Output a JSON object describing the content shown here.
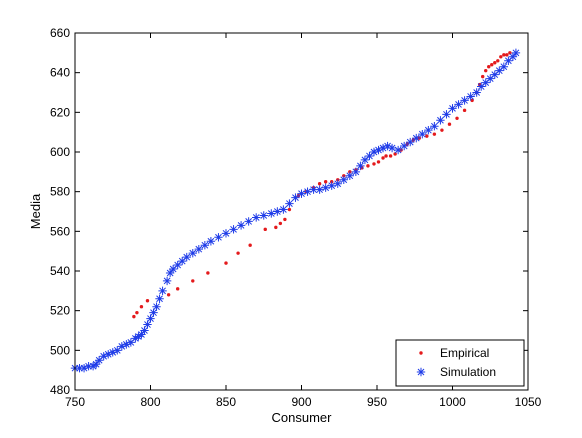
{
  "chart_data": {
    "type": "scatter",
    "title": "",
    "xlabel": "Consumer",
    "ylabel": "Media",
    "xlim": [
      750,
      1050
    ],
    "ylim": [
      480,
      660
    ],
    "xticks": [
      750,
      800,
      850,
      900,
      950,
      1000,
      1050
    ],
    "yticks": [
      480,
      500,
      520,
      540,
      560,
      580,
      600,
      620,
      640,
      660
    ],
    "grid": false,
    "legend_placement": "bottom-right",
    "series": [
      {
        "name": "Empirical",
        "marker": "dot",
        "color": "#e41a1c",
        "points": [
          [
            789,
            517
          ],
          [
            791,
            519
          ],
          [
            794,
            522
          ],
          [
            798,
            525
          ],
          [
            812,
            528
          ],
          [
            818,
            531
          ],
          [
            828,
            535
          ],
          [
            838,
            539
          ],
          [
            850,
            544
          ],
          [
            858,
            549
          ],
          [
            866,
            553
          ],
          [
            876,
            561
          ],
          [
            883,
            562
          ],
          [
            886,
            564
          ],
          [
            889,
            566
          ],
          [
            892,
            571
          ],
          [
            898,
            578
          ],
          [
            903,
            580
          ],
          [
            908,
            582
          ],
          [
            912,
            584
          ],
          [
            916,
            585
          ],
          [
            920,
            585
          ],
          [
            924,
            586
          ],
          [
            928,
            588
          ],
          [
            932,
            590
          ],
          [
            936,
            591
          ],
          [
            940,
            592
          ],
          [
            944,
            593
          ],
          [
            948,
            594
          ],
          [
            951,
            595
          ],
          [
            954,
            597
          ],
          [
            956,
            598
          ],
          [
            959,
            598
          ],
          [
            962,
            599
          ],
          [
            966,
            601
          ],
          [
            970,
            604
          ],
          [
            974,
            606
          ],
          [
            978,
            607
          ],
          [
            983,
            608
          ],
          [
            988,
            609
          ],
          [
            993,
            611
          ],
          [
            998,
            614
          ],
          [
            1003,
            617
          ],
          [
            1008,
            621
          ],
          [
            1013,
            626
          ],
          [
            1016,
            630
          ],
          [
            1018,
            634
          ],
          [
            1020,
            638
          ],
          [
            1022,
            641
          ],
          [
            1024,
            643
          ],
          [
            1026,
            644
          ],
          [
            1028,
            645
          ],
          [
            1030,
            646
          ],
          [
            1032,
            648
          ],
          [
            1034,
            649
          ],
          [
            1036,
            649
          ],
          [
            1038,
            650
          ]
        ]
      },
      {
        "name": "Simulation",
        "marker": "asterisk",
        "color": "#1f3ce8",
        "points": [
          [
            750,
            491
          ],
          [
            753,
            491
          ],
          [
            756,
            491
          ],
          [
            759,
            492
          ],
          [
            762,
            492
          ],
          [
            764,
            493
          ],
          [
            766,
            495
          ],
          [
            769,
            497
          ],
          [
            772,
            498
          ],
          [
            775,
            499
          ],
          [
            778,
            500
          ],
          [
            781,
            502
          ],
          [
            784,
            503
          ],
          [
            787,
            504
          ],
          [
            790,
            506
          ],
          [
            792,
            507
          ],
          [
            794,
            508
          ],
          [
            796,
            510
          ],
          [
            798,
            513
          ],
          [
            800,
            516
          ],
          [
            802,
            519
          ],
          [
            804,
            522
          ],
          [
            806,
            526
          ],
          [
            808,
            530
          ],
          [
            811,
            535
          ],
          [
            813,
            539
          ],
          [
            815,
            541
          ],
          [
            818,
            543
          ],
          [
            821,
            545
          ],
          [
            824,
            547
          ],
          [
            828,
            549
          ],
          [
            832,
            551
          ],
          [
            836,
            553
          ],
          [
            840,
            555
          ],
          [
            845,
            557
          ],
          [
            850,
            559
          ],
          [
            855,
            561
          ],
          [
            860,
            563
          ],
          [
            865,
            565
          ],
          [
            870,
            567
          ],
          [
            875,
            568
          ],
          [
            880,
            569
          ],
          [
            884,
            570
          ],
          [
            888,
            571
          ],
          [
            892,
            574
          ],
          [
            896,
            577
          ],
          [
            900,
            579
          ],
          [
            904,
            580
          ],
          [
            908,
            581
          ],
          [
            912,
            581
          ],
          [
            916,
            582
          ],
          [
            920,
            583
          ],
          [
            924,
            584
          ],
          [
            928,
            586
          ],
          [
            932,
            588
          ],
          [
            936,
            590
          ],
          [
            939,
            593
          ],
          [
            942,
            596
          ],
          [
            945,
            598
          ],
          [
            948,
            600
          ],
          [
            951,
            601
          ],
          [
            954,
            602
          ],
          [
            957,
            603
          ],
          [
            960,
            602
          ],
          [
            964,
            601
          ],
          [
            968,
            603
          ],
          [
            972,
            605
          ],
          [
            976,
            607
          ],
          [
            980,
            609
          ],
          [
            984,
            611
          ],
          [
            988,
            613
          ],
          [
            992,
            616
          ],
          [
            996,
            619
          ],
          [
            1000,
            622
          ],
          [
            1004,
            624
          ],
          [
            1008,
            626
          ],
          [
            1012,
            628
          ],
          [
            1016,
            630
          ],
          [
            1019,
            633
          ],
          [
            1022,
            635
          ],
          [
            1025,
            637
          ],
          [
            1028,
            639
          ],
          [
            1031,
            641
          ],
          [
            1034,
            643
          ],
          [
            1037,
            646
          ],
          [
            1040,
            648
          ],
          [
            1042,
            650
          ]
        ]
      }
    ]
  }
}
